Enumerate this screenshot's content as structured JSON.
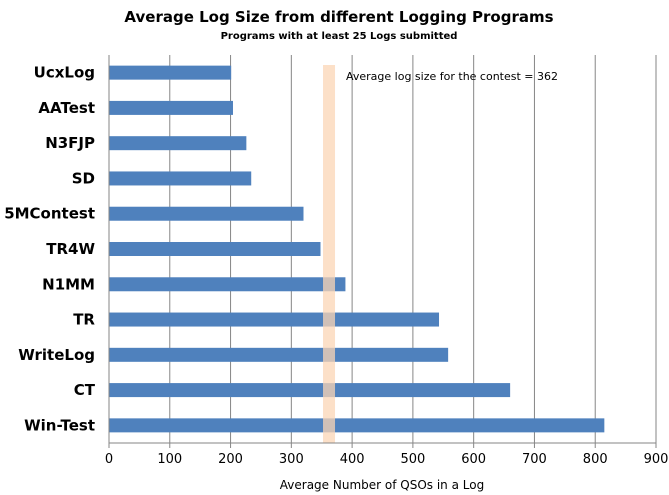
{
  "chart_data": {
    "type": "bar",
    "orientation": "horizontal",
    "title": "Average Log Size from different Logging Programs",
    "subtitle": "Programs with at least 25 Logs submitted",
    "xlabel": "Average Number of QSOs in a Log",
    "ylabel": "",
    "categories": [
      "UcxLog",
      "AATest",
      "N3FJP",
      "SD",
      "5MContest",
      "TR4W",
      "N1MM",
      "TR",
      "WriteLog",
      "CT",
      "Win-Test"
    ],
    "values": [
      201,
      204,
      226,
      234,
      320,
      348,
      389,
      543,
      558,
      660,
      815
    ],
    "xlim": [
      0,
      900
    ],
    "xticks": [
      0,
      100,
      200,
      300,
      400,
      500,
      600,
      700,
      800,
      900
    ],
    "grid": "vertical",
    "bar_color": "#4F81BD",
    "reference_line": {
      "value": 362,
      "label": "Average log size for the contest = 362",
      "color": "#FBD5B5"
    }
  }
}
